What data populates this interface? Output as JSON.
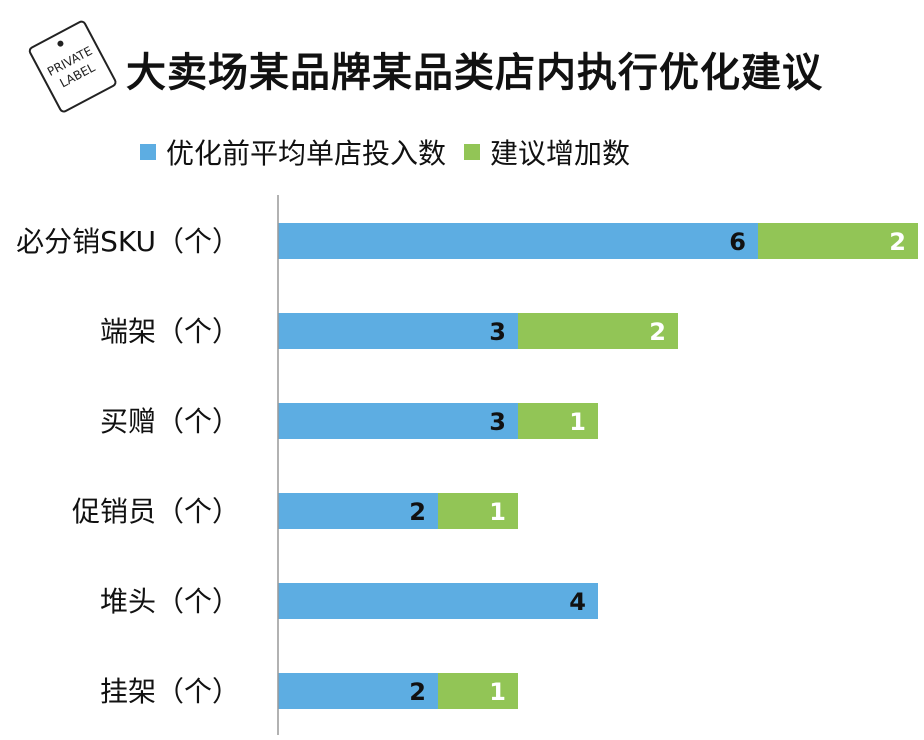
{
  "header": {
    "title": "大卖场某品牌某品类店内执行优化建议",
    "logo_text": "PRIVATE LABEL"
  },
  "colors": {
    "series1": "#5DADE2",
    "series2": "#92C556",
    "text": "#111111",
    "axis": "#999999"
  },
  "chart_data": {
    "type": "bar",
    "orientation": "horizontal",
    "stacked": true,
    "categories": [
      "必分销SKU（个）",
      "端架（个）",
      "买赠（个）",
      "促销员（个）",
      "堆头（个）",
      "挂架（个）"
    ],
    "series": [
      {
        "name": "优化前平均单店投入数",
        "values": [
          6,
          3,
          3,
          2,
          4,
          2
        ]
      },
      {
        "name": "建议增加数",
        "values": [
          2,
          2,
          1,
          1,
          0,
          1
        ]
      }
    ],
    "xlim": [
      0,
      8
    ],
    "grid": false,
    "legend_position": "top",
    "data_labels": true
  }
}
